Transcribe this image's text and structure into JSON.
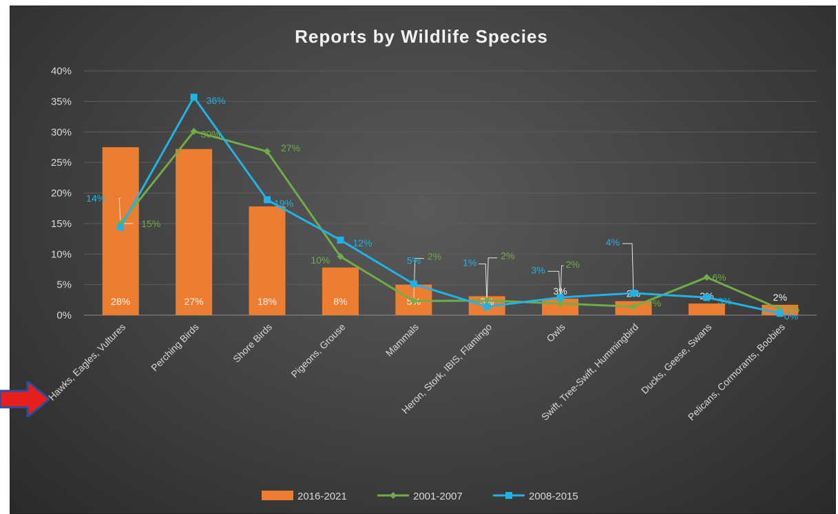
{
  "chart_data": {
    "type": "bar",
    "title": "Reports by Wildlife Species",
    "categories": [
      "Hawks, Eagles, Vultures",
      "Perching Birds",
      "Shore Birds",
      "Pigeons, Grouse",
      "Mammals",
      "Heron, Stork, IBIS, Flamingo",
      "Owls",
      "Swift, Tree-Swift, Hummingbird",
      "Ducks, Geese, Swans",
      "Pelicans, Cormorants, Boobies"
    ],
    "yticks": [
      "0%",
      "5%",
      "10%",
      "15%",
      "20%",
      "25%",
      "30%",
      "35%",
      "40%"
    ],
    "ylim": [
      0,
      40
    ],
    "grid": true,
    "legend_position": "bottom",
    "series": [
      {
        "name": "2016-2021",
        "kind": "bar",
        "color": "#ed7d31",
        "values": [
          27.5,
          27.2,
          17.8,
          7.8,
          5.0,
          3.1,
          2.7,
          2.3,
          1.9,
          1.7
        ],
        "labels": [
          "28%",
          "27%",
          "18%",
          "8%",
          "5%",
          "3%",
          "3%",
          "2%",
          "2%",
          "2%"
        ]
      },
      {
        "name": "2001-2007",
        "kind": "line",
        "color": "#70ad47",
        "values": [
          15.0,
          30.1,
          26.8,
          9.6,
          2.3,
          2.4,
          1.9,
          1.4,
          6.2,
          1.0
        ],
        "labels": [
          "15%",
          "30%",
          "27%",
          "10%",
          "2%",
          "2%",
          "2%",
          "1%",
          "6%",
          "1%"
        ]
      },
      {
        "name": "2008-2015",
        "kind": "line",
        "color": "#1fb3e8",
        "values": [
          14.4,
          35.7,
          18.9,
          12.3,
          5.1,
          1.4,
          2.9,
          3.6,
          2.9,
          0.3
        ],
        "labels": [
          "14%",
          "36%",
          "19%",
          "12%",
          "5%",
          "1%",
          "3%",
          "4%",
          "3%",
          "0%"
        ]
      }
    ]
  }
}
